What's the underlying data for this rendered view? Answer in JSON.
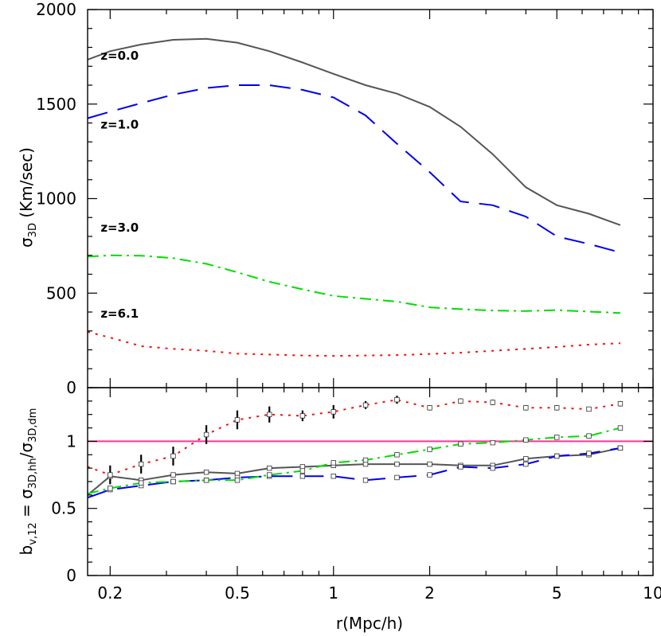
{
  "chart_data": [
    {
      "type": "line",
      "panel": "top",
      "xscale": "log",
      "xlim": [
        0.17,
        10
      ],
      "ylim": [
        0,
        2000
      ],
      "ylabel": "σ",
      "ylabel_sub": "3D",
      "ylabel_tail": " (Km/sec)",
      "yticks": [
        0,
        500,
        1000,
        1500,
        2000
      ],
      "ytick_labels": [
        "0",
        "500",
        "1000",
        "1500",
        "2000"
      ],
      "series": [
        {
          "name": "z=0.0",
          "color": "#555555",
          "dash": "solid",
          "x": [
            0.17,
            0.2,
            0.25,
            0.315,
            0.4,
            0.5,
            0.63,
            0.8,
            1.0,
            1.26,
            1.58,
            2.0,
            2.5,
            3.15,
            4.0,
            5.0,
            6.3,
            7.9
          ],
          "y": [
            1735,
            1780,
            1815,
            1840,
            1845,
            1825,
            1780,
            1720,
            1660,
            1600,
            1555,
            1485,
            1380,
            1235,
            1060,
            965,
            920,
            860
          ]
        },
        {
          "name": "z=1.0",
          "color": "#0000ee",
          "dash": "long",
          "x": [
            0.17,
            0.2,
            0.25,
            0.315,
            0.4,
            0.5,
            0.63,
            0.8,
            1.0,
            1.26,
            1.58,
            2.0,
            2.5,
            3.15,
            4.0,
            5.0,
            6.3,
            7.9
          ],
          "y": [
            1425,
            1460,
            1505,
            1550,
            1585,
            1600,
            1600,
            1575,
            1535,
            1440,
            1290,
            1140,
            985,
            965,
            905,
            800,
            760,
            715
          ]
        },
        {
          "name": "z=3.0",
          "color": "#00dd00",
          "dash": "dashdot",
          "x": [
            0.17,
            0.2,
            0.25,
            0.315,
            0.4,
            0.5,
            0.63,
            0.8,
            1.0,
            1.26,
            1.58,
            2.0,
            2.5,
            3.15,
            4.0,
            5.0,
            6.3,
            7.9
          ],
          "y": [
            693,
            700,
            698,
            685,
            655,
            610,
            560,
            520,
            485,
            470,
            455,
            425,
            415,
            408,
            405,
            410,
            402,
            395
          ]
        },
        {
          "name": "z=6.1",
          "color": "#ee1111",
          "dash": "dotted",
          "x": [
            0.17,
            0.2,
            0.25,
            0.315,
            0.4,
            0.5,
            0.63,
            0.8,
            1.0,
            1.26,
            1.58,
            2.0,
            2.5,
            3.15,
            4.0,
            5.0,
            6.3,
            7.9
          ],
          "y": [
            295,
            265,
            220,
            205,
            195,
            180,
            175,
            170,
            168,
            170,
            172,
            178,
            185,
            195,
            205,
            215,
            228,
            235
          ]
        }
      ],
      "annotations": [
        {
          "text": "z=0.0",
          "x": 0.2,
          "y": 1735
        },
        {
          "text": "z=1.0",
          "x": 0.2,
          "y": 1370
        },
        {
          "text": "z=3.0",
          "x": 0.2,
          "y": 825
        },
        {
          "text": "z=6.1",
          "x": 0.2,
          "y": 370
        }
      ]
    },
    {
      "type": "line",
      "panel": "bottom",
      "xscale": "log",
      "xlim": [
        0.17,
        10
      ],
      "ylim": [
        0,
        1.4
      ],
      "xlabel": "r(Mpc/h)",
      "ylabel": "b",
      "ylabel_sub": "v,12",
      "ylabel_mid": " = σ",
      "ylabel_sub2": "3D,hh",
      "ylabel_sep": "/σ",
      "ylabel_sub3": "3D,dm",
      "yticks": [
        0,
        0.5,
        1
      ],
      "ytick_labels": [
        "0",
        "0.5",
        "1"
      ],
      "xticks": [
        0.2,
        0.5,
        1,
        2,
        5,
        10
      ],
      "xtick_labels": [
        "0.2",
        "0.5",
        "1",
        "2",
        "5",
        "10"
      ],
      "reference_line": {
        "y": 1.0,
        "color": "#ff3399"
      },
      "series": [
        {
          "name": "z=0.0",
          "color": "#555555",
          "dash": "solid",
          "x": [
            0.17,
            0.2,
            0.25,
            0.315,
            0.4,
            0.5,
            0.63,
            0.8,
            1.0,
            1.26,
            1.58,
            2.0,
            2.5,
            3.15,
            4.0,
            5.0,
            6.3,
            7.9
          ],
          "y": [
            0.6,
            0.74,
            0.71,
            0.75,
            0.77,
            0.76,
            0.8,
            0.81,
            0.82,
            0.83,
            0.83,
            0.83,
            0.82,
            0.82,
            0.87,
            0.89,
            0.9,
            0.95
          ],
          "markers": true
        },
        {
          "name": "z=1.0",
          "color": "#0000ee",
          "dash": "long",
          "x": [
            0.17,
            0.2,
            0.25,
            0.315,
            0.4,
            0.5,
            0.63,
            0.8,
            1.0,
            1.26,
            1.58,
            2.0,
            2.5,
            3.15,
            4.0,
            5.0,
            6.3,
            7.9
          ],
          "y": [
            0.58,
            0.64,
            0.67,
            0.7,
            0.71,
            0.73,
            0.74,
            0.74,
            0.74,
            0.71,
            0.73,
            0.75,
            0.81,
            0.8,
            0.83,
            0.89,
            0.91,
            0.95
          ],
          "markers": true
        },
        {
          "name": "z=3.0",
          "color": "#00dd00",
          "dash": "dashdot",
          "x": [
            0.17,
            0.2,
            0.25,
            0.315,
            0.4,
            0.5,
            0.63,
            0.8,
            1.0,
            1.26,
            1.58,
            2.0,
            2.5,
            3.15,
            4.0,
            5.0,
            6.3,
            7.9
          ],
          "y": [
            0.61,
            0.65,
            0.69,
            0.7,
            0.71,
            0.71,
            0.75,
            0.78,
            0.84,
            0.86,
            0.9,
            0.94,
            0.98,
            0.99,
            1.01,
            1.03,
            1.04,
            1.1
          ],
          "markers": true
        },
        {
          "name": "z=6.1",
          "color": "#ee1111",
          "dash": "dotted",
          "x": [
            0.17,
            0.2,
            0.25,
            0.315,
            0.4,
            0.5,
            0.63,
            0.8,
            1.0,
            1.26,
            1.58,
            2.0,
            2.5,
            3.15,
            4.0,
            5.0,
            6.3,
            7.9
          ],
          "y": [
            0.81,
            0.75,
            0.83,
            0.89,
            1.05,
            1.16,
            1.2,
            1.19,
            1.22,
            1.27,
            1.31,
            1.25,
            1.3,
            1.29,
            1.25,
            1.25,
            1.24,
            1.28
          ],
          "markers": true
        }
      ],
      "error_bars": {
        "x": [
          0.2,
          0.25,
          0.315,
          0.4,
          0.5,
          0.63,
          0.8,
          1.0,
          1.26,
          1.58,
          2.0,
          2.5,
          3.15,
          4.0,
          5.0,
          6.3,
          7.9
        ],
        "y": [
          0.75,
          0.83,
          0.89,
          1.05,
          1.16,
          1.2,
          1.19,
          1.22,
          1.27,
          1.31,
          1.25,
          1.3,
          1.29,
          1.25,
          1.25,
          1.24,
          1.28
        ],
        "err": [
          0.07,
          0.07,
          0.07,
          0.07,
          0.07,
          0.06,
          0.04,
          0.05,
          0.03,
          0.03,
          0.02,
          0.02,
          0.02,
          0.02,
          0.02,
          0.01,
          0.02
        ]
      }
    }
  ]
}
